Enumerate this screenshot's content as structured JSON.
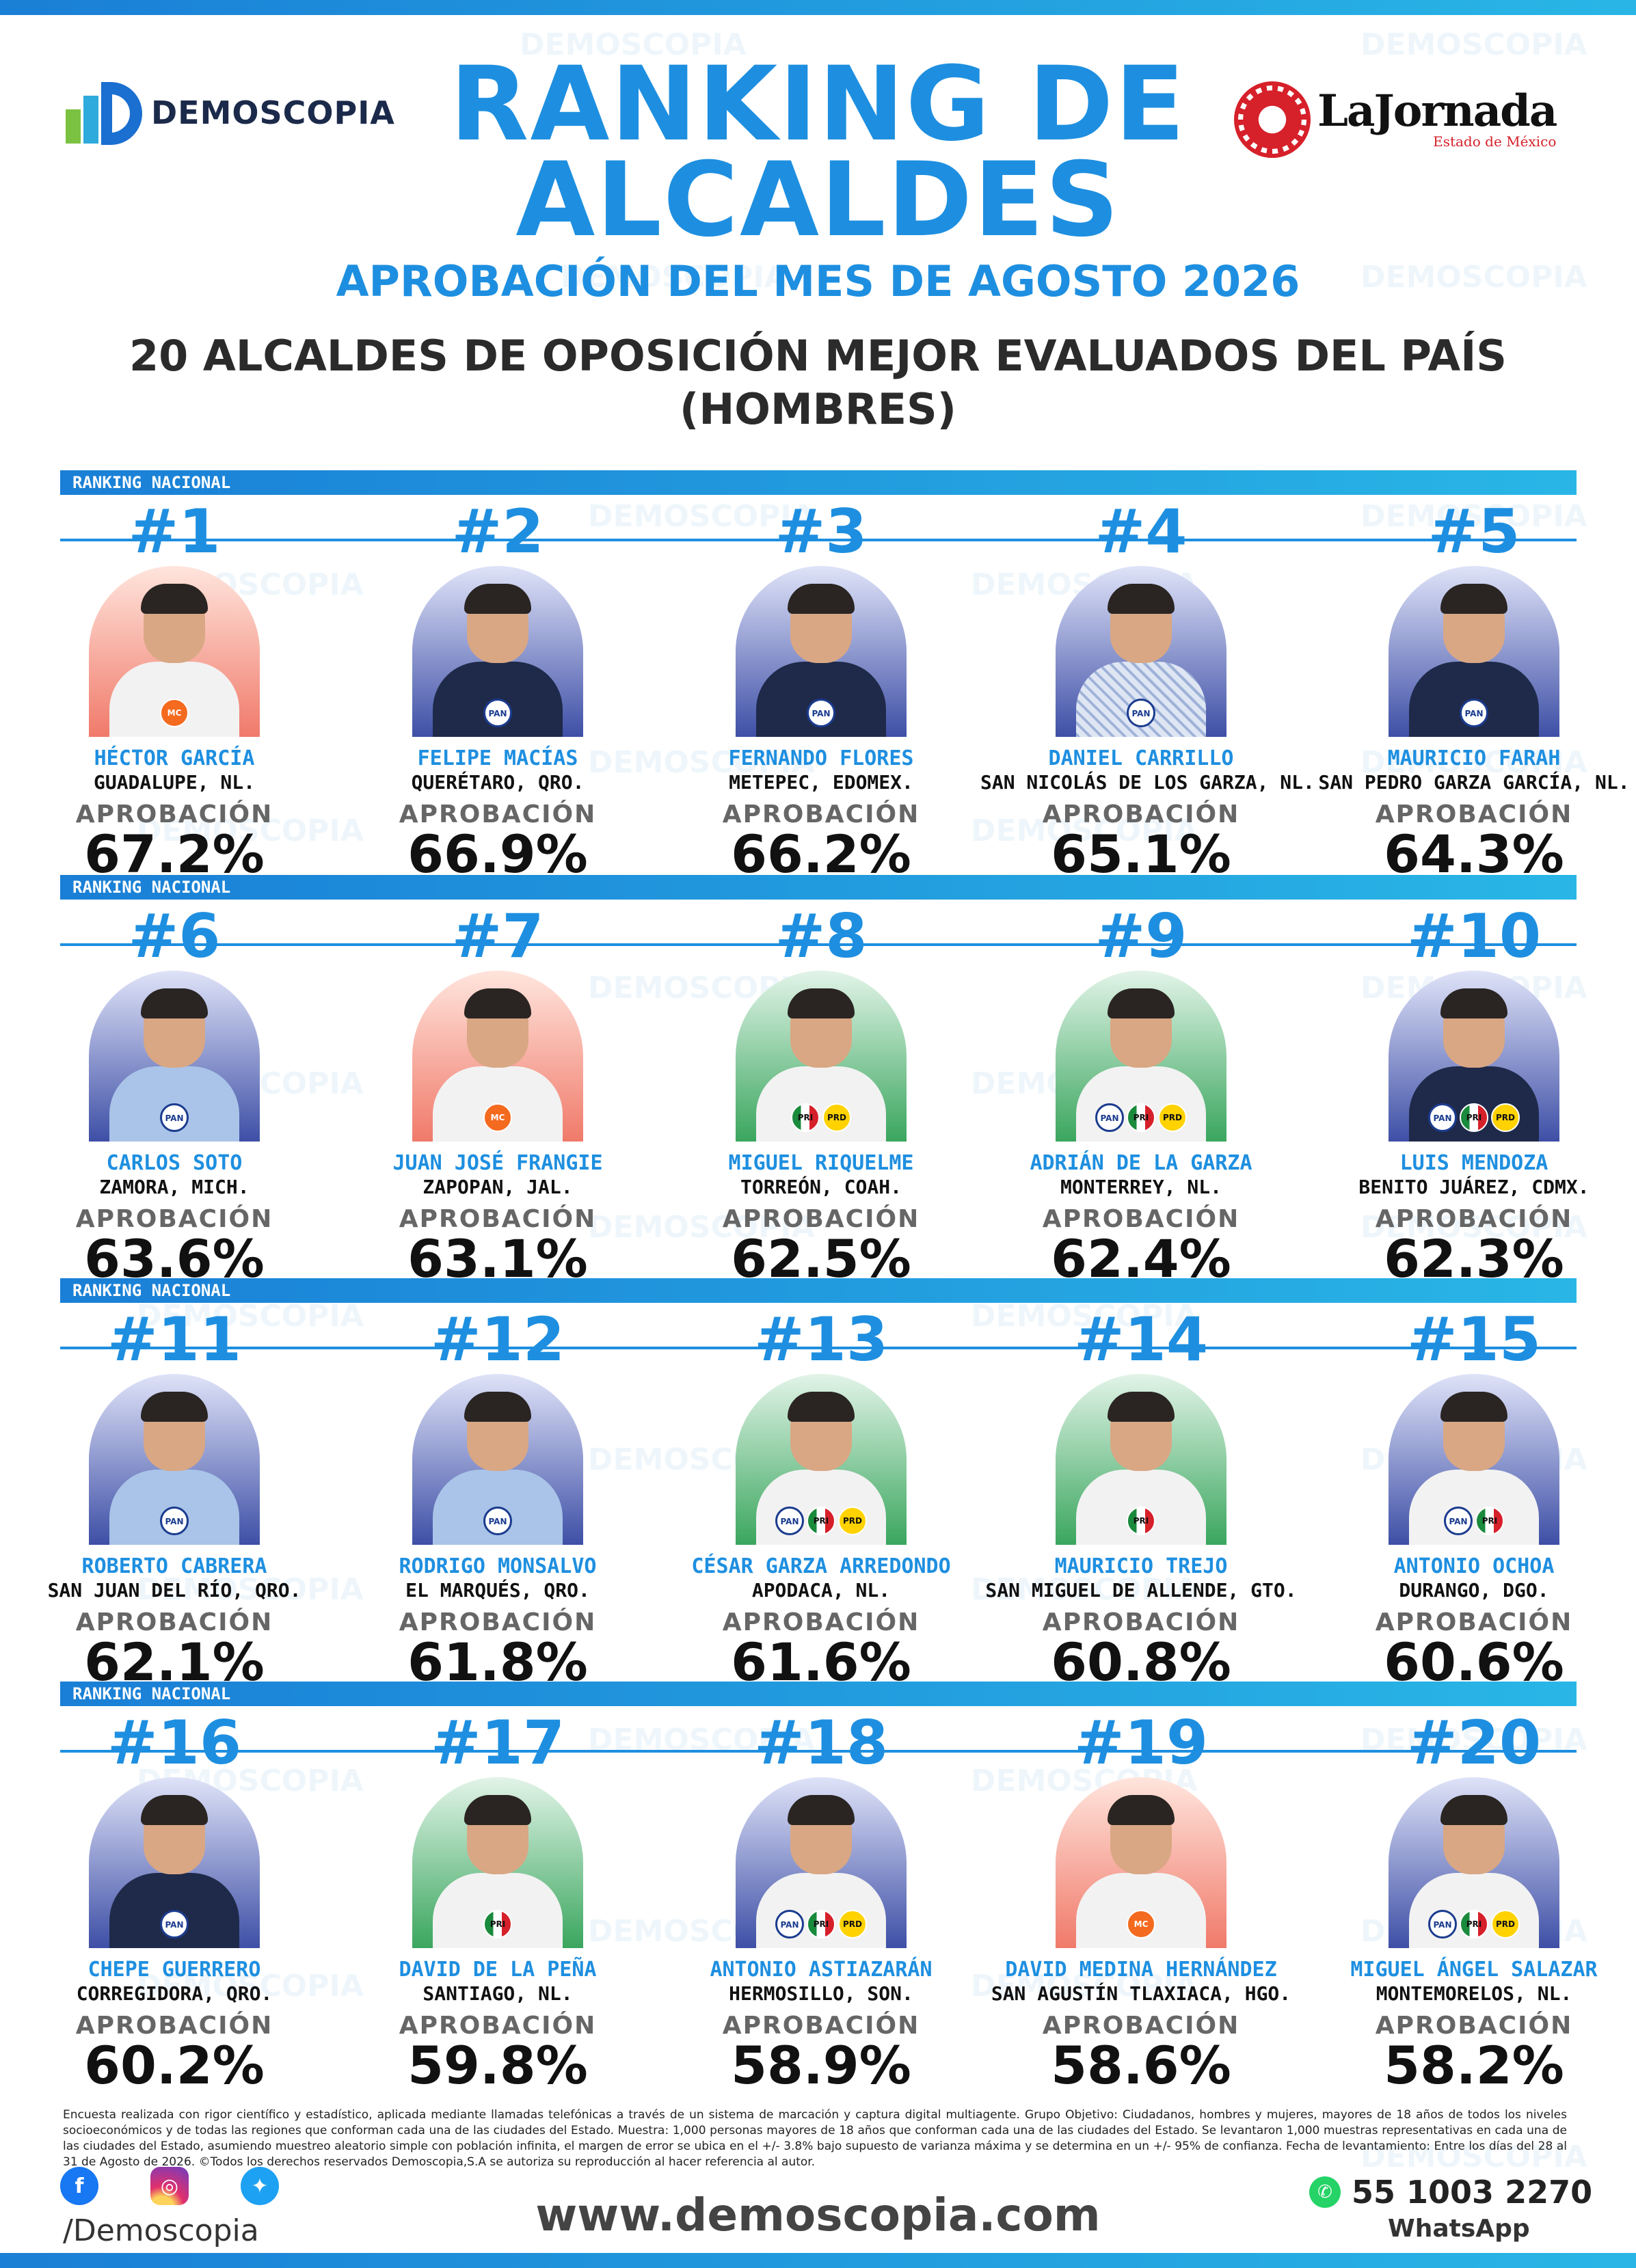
{
  "header": {
    "brand_left": "DEMOSCOPIA",
    "brand_right_name": "LaJornada",
    "brand_right_sub": "Estado de México",
    "title_line1": "RANKING DE",
    "title_line2": "ALCALDES",
    "subtitle": "APROBACIÓN DEL MES DE AGOSTO 2026",
    "heading_line1": "20 ALCALDES DE OPOSICIÓN MEJOR EVALUADOS DEL PAÍS",
    "heading_line2": "(HOMBRES)"
  },
  "watermark": "DEMOSCOPIA",
  "row_label": "RANKING NACIONAL",
  "approval_label": "APROBACIÓN",
  "rows": [
    [
      {
        "rank": "#1",
        "name": "HÉCTOR GARCÍA",
        "city": "GUADALUPE, NL.",
        "approval": "67.2%",
        "bg": "red",
        "outfit": "white",
        "parties": [
          "MC"
        ]
      },
      {
        "rank": "#2",
        "name": "FELIPE MACÍAS",
        "city": "QUERÉTARO, QRO.",
        "approval": "66.9%",
        "bg": "blue",
        "outfit": "suit",
        "parties": [
          "PAN"
        ]
      },
      {
        "rank": "#3",
        "name": "FERNANDO FLORES",
        "city": "METEPEC, EDOMEX.",
        "approval": "66.2%",
        "bg": "blue",
        "outfit": "suit",
        "parties": [
          "PAN"
        ]
      },
      {
        "rank": "#4",
        "name": "DANIEL CARRILLO",
        "city": "SAN NICOLÁS DE LOS GARZA, NL.",
        "approval": "65.1%",
        "bg": "blue",
        "outfit": "pattern",
        "parties": [
          "PAN"
        ]
      },
      {
        "rank": "#5",
        "name": "MAURICIO FARAH",
        "city": "SAN PEDRO GARZA GARCÍA, NL.",
        "approval": "64.3%",
        "bg": "blue",
        "outfit": "suit",
        "parties": [
          "PAN"
        ]
      }
    ],
    [
      {
        "rank": "#6",
        "name": "CARLOS SOTO",
        "city": "ZAMORA, MICH.",
        "approval": "63.6%",
        "bg": "blue",
        "outfit": "lightblue",
        "parties": [
          "PAN"
        ]
      },
      {
        "rank": "#7",
        "name": "JUAN JOSÉ FRANGIE",
        "city": "ZAPOPAN, JAL.",
        "approval": "63.1%",
        "bg": "red",
        "outfit": "white",
        "parties": [
          "MC"
        ]
      },
      {
        "rank": "#8",
        "name": "MIGUEL RIQUELME",
        "city": "TORREÓN, COAH.",
        "approval": "62.5%",
        "bg": "green",
        "outfit": "white",
        "parties": [
          "PRI",
          "PRD"
        ]
      },
      {
        "rank": "#9",
        "name": "ADRIÁN DE LA GARZA",
        "city": "MONTERREY, NL.",
        "approval": "62.4%",
        "bg": "green",
        "outfit": "white",
        "parties": [
          "PAN",
          "PRI",
          "PRD"
        ]
      },
      {
        "rank": "#10",
        "name": "LUIS MENDOZA",
        "city": "BENITO JUÁREZ, CDMX.",
        "approval": "62.3%",
        "bg": "blue",
        "outfit": "suit",
        "parties": [
          "PAN",
          "PRI",
          "PRD"
        ]
      }
    ],
    [
      {
        "rank": "#11",
        "name": "ROBERTO CABRERA",
        "city": "SAN JUAN DEL RÍO, QRO.",
        "approval": "62.1%",
        "bg": "blue",
        "outfit": "lightblue",
        "parties": [
          "PAN"
        ]
      },
      {
        "rank": "#12",
        "name": "RODRIGO MONSALVO",
        "city": "EL MARQUÉS, QRO.",
        "approval": "61.8%",
        "bg": "blue",
        "outfit": "lightblue",
        "parties": [
          "PAN"
        ]
      },
      {
        "rank": "#13",
        "name": "CÉSAR GARZA ARREDONDO",
        "city": "APODACA, NL.",
        "approval": "61.6%",
        "bg": "green",
        "outfit": "white",
        "parties": [
          "PAN",
          "PRI",
          "PRD"
        ]
      },
      {
        "rank": "#14",
        "name": "MAURICIO TREJO",
        "city": "SAN MIGUEL DE ALLENDE, GTO.",
        "approval": "60.8%",
        "bg": "green",
        "outfit": "white",
        "parties": [
          "PRI"
        ]
      },
      {
        "rank": "#15",
        "name": "ANTONIO OCHOA",
        "city": "DURANGO, DGO.",
        "approval": "60.6%",
        "bg": "blue",
        "outfit": "white",
        "parties": [
          "PAN",
          "PRI"
        ]
      }
    ],
    [
      {
        "rank": "#16",
        "name": "CHEPE GUERRERO",
        "city": "CORREGIDORA, QRO.",
        "approval": "60.2%",
        "bg": "blue",
        "outfit": "suit",
        "parties": [
          "PAN"
        ]
      },
      {
        "rank": "#17",
        "name": "DAVID DE LA PEÑA",
        "city": "SANTIAGO, NL.",
        "approval": "59.8%",
        "bg": "green",
        "outfit": "white",
        "parties": [
          "PRI"
        ]
      },
      {
        "rank": "#18",
        "name": "ANTONIO ASTIAZARÁN",
        "city": "HERMOSILLO, SON.",
        "approval": "58.9%",
        "bg": "blue",
        "outfit": "white",
        "parties": [
          "PAN",
          "PRI",
          "PRD"
        ]
      },
      {
        "rank": "#19",
        "name": "DAVID MEDINA HERNÁNDEZ",
        "city": "SAN AGUSTÍN TLAXIACA, HGO.",
        "approval": "58.6%",
        "bg": "red",
        "outfit": "white",
        "parties": [
          "MC"
        ]
      },
      {
        "rank": "#20",
        "name": "MIGUEL ÁNGEL SALAZAR",
        "city": "MONTEMORELOS, NL.",
        "approval": "58.2%",
        "bg": "blue",
        "outfit": "white",
        "parties": [
          "PAN",
          "PRI",
          "PRD"
        ]
      }
    ]
  ],
  "footer": {
    "methodology": "Encuesta realizada con rigor científico y estadístico, aplicada mediante llamadas telefónicas a través de un sistema de marcación y captura digital multiagente. Grupo Objetivo: Ciudadanos, hombres y mujeres, mayores de 18 años de todos los niveles socioeconómicos y de todas las regiones que conforman cada una de las ciudades del Estado. Muestra: 1,000 personas mayores de 18 años que conforman cada una de las ciudades del Estado. Se levantaron 1,000 muestras representativas en cada una de las ciudades del Estado, asumiendo muestreo aleatorio simple con población infinita, el margen de error se ubica en el +/- 3.8% bajo supuesto de varianza máxima y se determina en un +/- 95% de confianza. Fecha de levantamiento: Entre los días del 28 al 31 de Agosto de 2026. ©Todos los derechos reservados Demoscopia,S.A se autoriza su reproducción al hacer referencia al autor.",
    "social_handle": "/Demoscopia",
    "website": "www.demoscopia.com",
    "whatsapp_number": "55 1003 2270",
    "whatsapp_label": "WhatsApp"
  },
  "colors": {
    "accent_blue": "#1e8fe0",
    "pan_blue": "#1b3c8f",
    "mc_orange": "#f46a1f",
    "pri_green": "#1a8a3c",
    "prd_yellow": "#ffd200"
  }
}
